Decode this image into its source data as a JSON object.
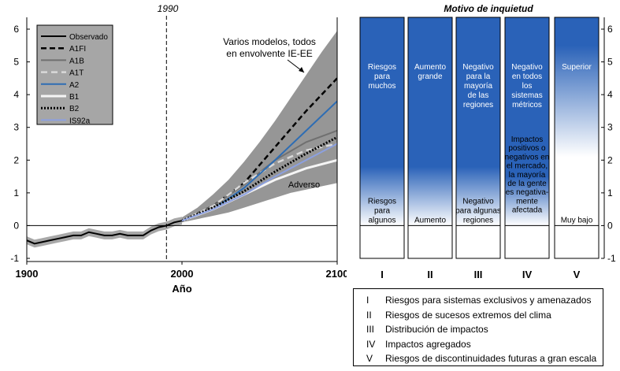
{
  "chart_data": [
    {
      "type": "line",
      "title": "1990",
      "xlabel": "Año",
      "ylabel": "",
      "xlim": [
        1900,
        2100
      ],
      "ylim": [
        -1,
        6.4
      ],
      "x_ticks": [
        1900,
        2000,
        2100
      ],
      "y_ticks": [
        -1,
        0,
        1,
        2,
        3,
        4,
        5,
        6
      ],
      "vertical_marker_year": 1990,
      "annotations": {
        "envelope_note_line1": "Varios modelos, todos",
        "envelope_note_line2": "en envolvente IE-EE",
        "adverse_label": "Adverso"
      },
      "envelope": {
        "name": "Envolvente IE-EE",
        "color": "#969696",
        "x": [
          1990,
          2000,
          2010,
          2020,
          2030,
          2040,
          2050,
          2060,
          2070,
          2080,
          2090,
          2100
        ],
        "lower": [
          0.0,
          0.1,
          0.2,
          0.3,
          0.4,
          0.55,
          0.7,
          0.85,
          1.0,
          1.1,
          1.2,
          1.3
        ],
        "upper": [
          0.05,
          0.25,
          0.55,
          0.95,
          1.4,
          1.95,
          2.55,
          3.2,
          3.9,
          4.6,
          5.3,
          5.95
        ]
      },
      "series": [
        {
          "name": "Observado",
          "color": "#000000",
          "style": "solid",
          "x": [
            1900,
            1905,
            1910,
            1915,
            1920,
            1925,
            1930,
            1935,
            1940,
            1945,
            1950,
            1955,
            1960,
            1965,
            1970,
            1975,
            1980,
            1985,
            1990,
            1995,
            2000
          ],
          "y": [
            -0.45,
            -0.55,
            -0.5,
            -0.45,
            -0.4,
            -0.35,
            -0.3,
            -0.3,
            -0.2,
            -0.25,
            -0.3,
            -0.3,
            -0.25,
            -0.3,
            -0.3,
            -0.3,
            -0.15,
            -0.05,
            0.0,
            0.1,
            0.15
          ]
        },
        {
          "name": "A1FI",
          "color": "#000000",
          "style": "dashed-heavy",
          "x": [
            2000,
            2020,
            2040,
            2060,
            2080,
            2100
          ],
          "y": [
            0.15,
            0.6,
            1.3,
            2.4,
            3.5,
            4.5
          ]
        },
        {
          "name": "A1B",
          "color": "#707070",
          "style": "solid",
          "x": [
            2000,
            2020,
            2040,
            2060,
            2080,
            2100
          ],
          "y": [
            0.15,
            0.6,
            1.25,
            2.0,
            2.55,
            2.9
          ]
        },
        {
          "name": "A1T",
          "color": "#d9d9d9",
          "style": "dashed",
          "x": [
            2000,
            2020,
            2040,
            2060,
            2080,
            2100
          ],
          "y": [
            0.15,
            0.6,
            1.3,
            1.9,
            2.3,
            2.5
          ]
        },
        {
          "name": "A2",
          "color": "#2e6db4",
          "style": "solid",
          "x": [
            2000,
            2020,
            2040,
            2060,
            2080,
            2100
          ],
          "y": [
            0.15,
            0.5,
            1.15,
            2.0,
            2.9,
            3.8
          ]
        },
        {
          "name": "B1",
          "color": "#f5f5f5",
          "style": "solid-thick",
          "x": [
            2000,
            2020,
            2040,
            2060,
            2080,
            2100
          ],
          "y": [
            0.15,
            0.5,
            0.95,
            1.4,
            1.75,
            2.0
          ]
        },
        {
          "name": "B2",
          "color": "#000000",
          "style": "dotted",
          "x": [
            2000,
            2020,
            2040,
            2060,
            2080,
            2100
          ],
          "y": [
            0.15,
            0.55,
            1.05,
            1.65,
            2.2,
            2.7
          ]
        },
        {
          "name": "IS92a",
          "color": "#8ca0e0",
          "style": "solid",
          "x": [
            2000,
            2020,
            2040,
            2060,
            2080,
            2100
          ],
          "y": [
            0.15,
            0.5,
            0.95,
            1.5,
            2.0,
            2.5
          ]
        }
      ],
      "legend_position": "top-left"
    },
    {
      "type": "bar",
      "title": "Motivo de inquietud",
      "ylim": [
        -1,
        6.4
      ],
      "y_ticks": [
        -1,
        0,
        1,
        2,
        3,
        4,
        5,
        6
      ],
      "categories": [
        "I",
        "II",
        "III",
        "IV",
        "V"
      ],
      "gradient_color": "#2a62b8",
      "white_below": [
        0,
        0,
        0,
        0,
        2.1
      ],
      "solid_above": [
        1.8,
        1.8,
        1.8,
        1.5,
        5.5
      ],
      "upper_labels": [
        [
          "Riesgos",
          "para",
          "muchos"
        ],
        [
          "Aumento",
          "grande"
        ],
        [
          "Negativo",
          "para la",
          "mayoría",
          "de las",
          "regiones"
        ],
        [
          "Negativo",
          "en todos",
          "los",
          "sistemas",
          "métricos"
        ],
        [
          "Superior"
        ]
      ],
      "middle_labels": [
        [],
        [],
        [],
        [
          "Impactos",
          "positivos o",
          "negativos en",
          "el mercado,",
          "la mayoría",
          "de la gente",
          "es negativa-",
          "mente",
          "afectada"
        ],
        []
      ],
      "lower_labels": [
        [
          "Riesgos",
          "para",
          "algunos"
        ],
        [
          "Aumento"
        ],
        [
          "Negativo",
          "para algunas",
          "regiones"
        ],
        [],
        [
          "Muy bajo"
        ]
      ]
    }
  ],
  "legend": {
    "items": [
      {
        "num": "I",
        "text": "Riesgos para sistemas exclusivos y amenazados"
      },
      {
        "num": "II",
        "text": "Riesgos de sucesos extremos del clima"
      },
      {
        "num": "III",
        "text": "Distribución de impactos"
      },
      {
        "num": "IV",
        "text": "Impactos agregados"
      },
      {
        "num": "V",
        "text": "Riesgos de discontinuidades futuras a gran escala"
      }
    ]
  }
}
